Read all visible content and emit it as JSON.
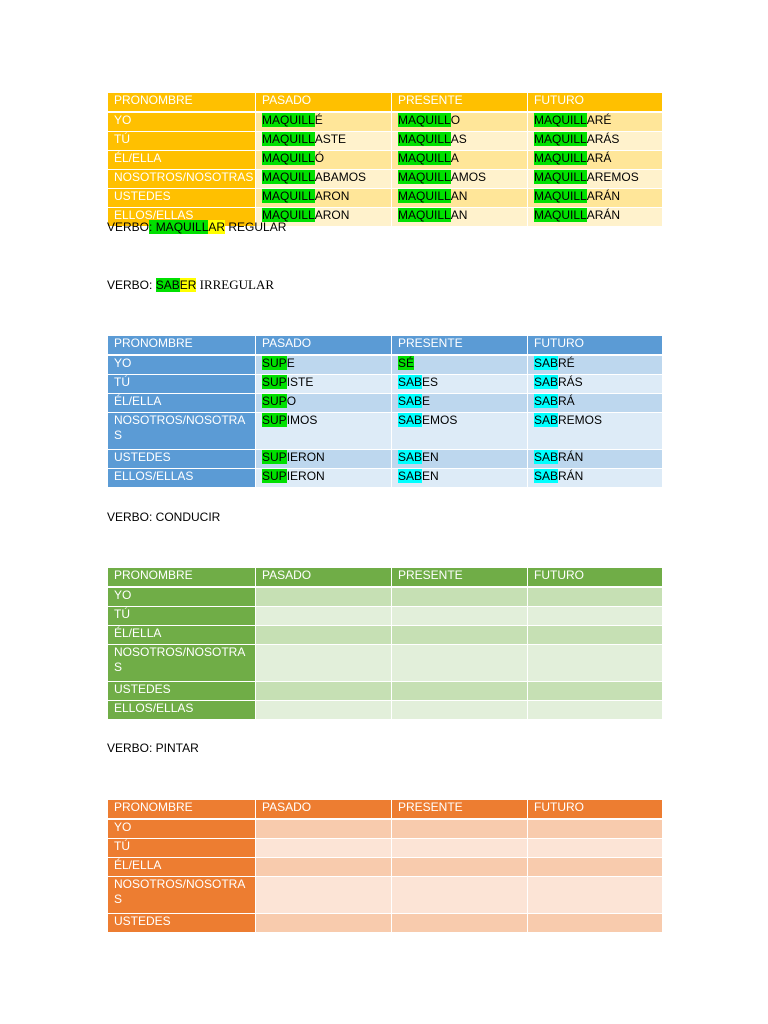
{
  "theme": {
    "gold": {
      "head": "#ffc000",
      "pron": "#ffc000",
      "band1": "#ffe699",
      "band2": "#fff2cc"
    },
    "blue": {
      "head": "#5b9bd5",
      "pron": "#5b9bd5",
      "band1": "#bdd7ee",
      "band2": "#ddebf7"
    },
    "green": {
      "head": "#70ad47",
      "pron": "#70ad47",
      "band1": "#c6e0b4",
      "band2": "#e2efda"
    },
    "orange": {
      "head": "#ed7d31",
      "pron": "#ed7d31",
      "band1": "#f8cbad",
      "band2": "#fce4d6"
    }
  },
  "headers": [
    "PRONOMBRE",
    "PASADO",
    "PRESENTE",
    "FUTURO"
  ],
  "table1": {
    "rows": [
      {
        "pron": "YO",
        "pasado": [
          "MAQUILL",
          "É"
        ],
        "presente": [
          "MAQUILL",
          "O"
        ],
        "futuro": [
          "MAQUILL",
          "ARÉ"
        ]
      },
      {
        "pron": "TÚ",
        "pasado": [
          "MAQUILL",
          "ASTE"
        ],
        "presente": [
          "MAQUILL",
          "AS"
        ],
        "futuro": [
          "MAQUILL",
          "ARÁS"
        ]
      },
      {
        "pron": "ÉL/ELLA",
        "pasado": [
          "MAQUILL",
          "Ó"
        ],
        "presente": [
          "MAQUILL",
          "A"
        ],
        "futuro": [
          "MAQUILL",
          "ARÁ"
        ]
      },
      {
        "pron": "NOSOTROS/NOSOTRAS",
        "pasado": [
          "MAQUILL",
          "ABAMOS"
        ],
        "presente": [
          "MAQUILL",
          "AMOS"
        ],
        "futuro": [
          "MAQUILL",
          "AREMOS"
        ]
      },
      {
        "pron": "USTEDES",
        "pasado": [
          "MAQUILL",
          "ARON"
        ],
        "presente": [
          "MAQUILL",
          "AN"
        ],
        "futuro": [
          "MAQUILL",
          "ARÁN"
        ]
      },
      {
        "pron": "ELLOS/ELLAS",
        "pasado": [
          "MAQUILL",
          "ARON"
        ],
        "presente": [
          "MAQUILL",
          "AN"
        ],
        "futuro": [
          "MAQUILL",
          "ARÁN"
        ]
      }
    ]
  },
  "verb1": {
    "prefix": "VERBO",
    "colon": ": ",
    "stem": "MAQUILL",
    "ending": "AR",
    "type": " REGULAR"
  },
  "verb2": {
    "prefix": "VERBO: ",
    "stem": "SAB",
    "ending": "ER",
    "type": " IRREGULAR"
  },
  "table2": {
    "rows": [
      {
        "pron": "YO",
        "pasado": [
          "SUP",
          "E"
        ],
        "presente": [
          "SÉ",
          ""
        ],
        "futuro": [
          "SAB",
          "RÉ"
        ]
      },
      {
        "pron": "TÚ",
        "pasado": [
          "SUP",
          "ISTE"
        ],
        "presente": [
          "SAB",
          "ES"
        ],
        "futuro": [
          "SAB",
          "RÁS"
        ]
      },
      {
        "pron": "ÉL/ELLA",
        "pasado": [
          "SUP",
          "O"
        ],
        "presente": [
          "SAB",
          "E"
        ],
        "futuro": [
          "SAB",
          "RÁ"
        ]
      },
      {
        "pron": "NOSOTROS/NOSOTRAS",
        "pasado": [
          "SUP",
          "IMOS"
        ],
        "presente": [
          "SAB",
          "EMOS"
        ],
        "futuro": [
          "SAB",
          "REMOS"
        ]
      },
      {
        "pron": "USTEDES",
        "pasado": [
          "SUP",
          "IERON"
        ],
        "presente": [
          "SAB",
          "EN"
        ],
        "futuro": [
          "SAB",
          "RÁN"
        ]
      },
      {
        "pron": "ELLOS/ELLAS",
        "pasado": [
          "SUP",
          "IERON"
        ],
        "presente": [
          "SAB",
          "EN"
        ],
        "futuro": [
          "SAB",
          "RÁN"
        ]
      }
    ]
  },
  "verb3": {
    "label": "VERBO: CONDUCIR"
  },
  "table3": {
    "prons": [
      "YO",
      "TÚ",
      "ÉL/ELLA",
      "NOSOTROS/NOSOTRAS",
      "USTEDES",
      "ELLOS/ELLAS"
    ]
  },
  "verb4": {
    "label": "VERBO: PINTAR"
  },
  "table4": {
    "prons": [
      "YO",
      "TÚ",
      "ÉL/ELLA",
      "NOSOTROS/NOSOTRAS",
      "USTEDES"
    ]
  }
}
